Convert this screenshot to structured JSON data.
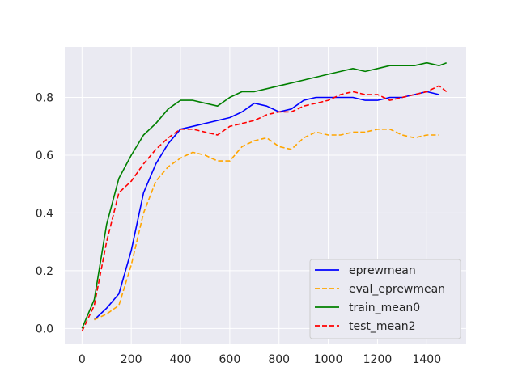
{
  "chart_data": {
    "type": "line",
    "title": "",
    "xlabel": "",
    "ylabel": "",
    "xlim": [
      -70,
      1560
    ],
    "ylim": [
      -0.055,
      0.975
    ],
    "xticks": [
      0,
      200,
      400,
      600,
      800,
      1000,
      1200,
      1400
    ],
    "yticks": [
      0.0,
      0.2,
      0.4,
      0.6,
      0.8
    ],
    "ytick_labels": [
      "0.0",
      "0.2",
      "0.4",
      "0.6",
      "0.8"
    ],
    "grid": true,
    "legend": {
      "position": "lower-right"
    },
    "series": [
      {
        "name": "eprewmean",
        "color": "#0000ff",
        "style": "solid",
        "x": [
          50,
          100,
          150,
          200,
          250,
          300,
          350,
          400,
          450,
          500,
          550,
          600,
          650,
          700,
          750,
          800,
          850,
          900,
          950,
          1000,
          1050,
          1100,
          1150,
          1200,
          1250,
          1300,
          1350,
          1400,
          1450
        ],
        "y": [
          0.03,
          0.07,
          0.12,
          0.27,
          0.47,
          0.57,
          0.64,
          0.69,
          0.7,
          0.71,
          0.72,
          0.73,
          0.75,
          0.78,
          0.77,
          0.75,
          0.76,
          0.79,
          0.8,
          0.8,
          0.8,
          0.8,
          0.79,
          0.79,
          0.8,
          0.8,
          0.81,
          0.82,
          0.81
        ]
      },
      {
        "name": "eval_eprewmean",
        "color": "#ffa500",
        "style": "dashed",
        "x": [
          50,
          100,
          150,
          200,
          250,
          300,
          350,
          400,
          450,
          500,
          550,
          600,
          650,
          700,
          750,
          800,
          850,
          900,
          950,
          1000,
          1050,
          1100,
          1150,
          1200,
          1250,
          1300,
          1350,
          1400,
          1450
        ],
        "y": [
          0.03,
          0.05,
          0.08,
          0.22,
          0.4,
          0.51,
          0.56,
          0.59,
          0.61,
          0.6,
          0.58,
          0.58,
          0.63,
          0.65,
          0.66,
          0.63,
          0.62,
          0.66,
          0.68,
          0.67,
          0.67,
          0.68,
          0.68,
          0.69,
          0.69,
          0.67,
          0.66,
          0.67,
          0.67
        ]
      },
      {
        "name": "train_mean0",
        "color": "#008000",
        "style": "solid",
        "x": [
          0,
          50,
          100,
          150,
          200,
          250,
          300,
          350,
          400,
          450,
          500,
          550,
          600,
          650,
          700,
          750,
          800,
          850,
          900,
          950,
          1000,
          1050,
          1100,
          1150,
          1200,
          1250,
          1300,
          1350,
          1400,
          1450,
          1480
        ],
        "y": [
          0.0,
          0.1,
          0.36,
          0.52,
          0.6,
          0.67,
          0.71,
          0.76,
          0.79,
          0.79,
          0.78,
          0.77,
          0.8,
          0.82,
          0.82,
          0.83,
          0.84,
          0.85,
          0.86,
          0.87,
          0.88,
          0.89,
          0.9,
          0.89,
          0.9,
          0.91,
          0.91,
          0.91,
          0.92,
          0.91,
          0.92
        ]
      },
      {
        "name": "test_mean2",
        "color": "#ff0000",
        "style": "dashed",
        "x": [
          0,
          50,
          100,
          150,
          200,
          250,
          300,
          350,
          400,
          450,
          500,
          550,
          600,
          650,
          700,
          750,
          800,
          850,
          900,
          950,
          1000,
          1050,
          1100,
          1150,
          1200,
          1250,
          1300,
          1350,
          1400,
          1450,
          1480
        ],
        "y": [
          -0.01,
          0.08,
          0.3,
          0.47,
          0.51,
          0.57,
          0.62,
          0.66,
          0.69,
          0.69,
          0.68,
          0.67,
          0.7,
          0.71,
          0.72,
          0.74,
          0.75,
          0.75,
          0.77,
          0.78,
          0.79,
          0.81,
          0.82,
          0.81,
          0.81,
          0.79,
          0.8,
          0.81,
          0.82,
          0.84,
          0.82
        ]
      }
    ]
  }
}
